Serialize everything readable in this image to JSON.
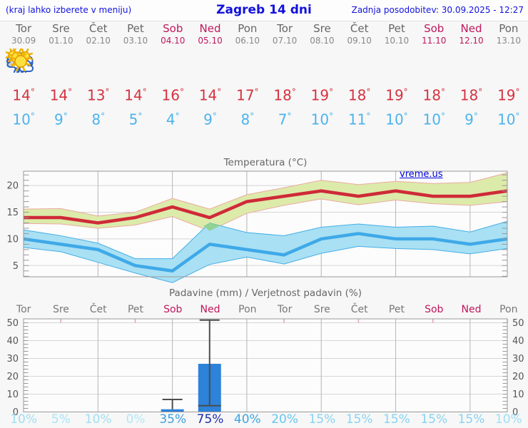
{
  "header": {
    "left_hint": "(kraj lahko izberete v meniju)",
    "title": "Zagreb 14 dni",
    "last_update": "Zadnja posodobitev: 30.09.2025 - 12:27"
  },
  "watermark": "vreme.us",
  "colors": {
    "weekday": "#666666",
    "weekend": "#c0175c",
    "tmax": "#d63240",
    "tmin": "#4cb3ec",
    "bar": "#2d82da",
    "max_line": "#cf2a38",
    "min_line": "#3fa9e8",
    "max_band": "#dcebaa",
    "min_band": "#a9e0f3",
    "overlap": "#8fd08f"
  },
  "days": [
    {
      "name": "Tor",
      "date": "30.09",
      "weekend": false,
      "icon": "cloudy",
      "tmax": "14",
      "tmin": "10",
      "pop": "10%",
      "pop_color": "#9edff4"
    },
    {
      "name": "Sre",
      "date": "01.10",
      "weekend": false,
      "icon": "partly-cloudy",
      "tmax": "14",
      "tmin": "9",
      "pop": "5%",
      "pop_color": "#a8e4f6"
    },
    {
      "name": "Čet",
      "date": "02.10",
      "weekend": false,
      "icon": "partly-cloudy",
      "tmax": "13",
      "tmin": "8",
      "pop": "10%",
      "pop_color": "#9edff4"
    },
    {
      "name": "Pet",
      "date": "03.10",
      "weekend": false,
      "icon": "sunny",
      "tmax": "14",
      "tmin": "5",
      "pop": "0%",
      "pop_color": "#b0e7f8"
    },
    {
      "name": "Sob",
      "date": "04.10",
      "weekend": true,
      "icon": "rain",
      "tmax": "16",
      "tmin": "4",
      "pop": "35%",
      "pop_color": "#3f9fdf"
    },
    {
      "name": "Ned",
      "date": "05.10",
      "weekend": true,
      "icon": "sun-rain",
      "tmax": "14",
      "tmin": "9",
      "pop": "75%",
      "pop_color": "#1c2bae"
    },
    {
      "name": "Pon",
      "date": "06.10",
      "weekend": false,
      "icon": "partly-cloudy",
      "tmax": "17",
      "tmin": "8",
      "pop": "40%",
      "pop_color": "#3aa6e6"
    },
    {
      "name": "Tor",
      "date": "07.10",
      "weekend": false,
      "icon": "mostly-sunny",
      "tmax": "18",
      "tmin": "7",
      "pop": "20%",
      "pop_color": "#67c5ee"
    },
    {
      "name": "Sre",
      "date": "08.10",
      "weekend": false,
      "icon": "sunny",
      "tmax": "19",
      "tmin": "10",
      "pop": "15%",
      "pop_color": "#85d4f2"
    },
    {
      "name": "Čet",
      "date": "09.10",
      "weekend": false,
      "icon": "sunny",
      "tmax": "18",
      "tmin": "11",
      "pop": "15%",
      "pop_color": "#85d4f2"
    },
    {
      "name": "Pet",
      "date": "10.10",
      "weekend": false,
      "icon": "sunny",
      "tmax": "19",
      "tmin": "10",
      "pop": "15%",
      "pop_color": "#85d4f2"
    },
    {
      "name": "Sob",
      "date": "11.10",
      "weekend": true,
      "icon": "sunny",
      "tmax": "18",
      "tmin": "10",
      "pop": "15%",
      "pop_color": "#85d4f2"
    },
    {
      "name": "Ned",
      "date": "12.10",
      "weekend": true,
      "icon": "sunny",
      "tmax": "18",
      "tmin": "9",
      "pop": "15%",
      "pop_color": "#85d4f2"
    },
    {
      "name": "Pon",
      "date": "13.10",
      "weekend": false,
      "icon": "sunny",
      "tmax": "19",
      "tmin": "10",
      "pop": "10%",
      "pop_color": "#9edff4"
    }
  ],
  "chart_data": [
    {
      "type": "line",
      "title": "Temperatura (°C)",
      "categories": [
        "Tor 30.09",
        "Sre 01.10",
        "Čet 02.10",
        "Pet 03.10",
        "Sob 04.10",
        "Ned 05.10",
        "Pon 06.10",
        "Tor 07.10",
        "Sre 08.10",
        "Čet 09.10",
        "Pet 10.10",
        "Sob 11.10",
        "Ned 12.10",
        "Pon 13.10"
      ],
      "series": [
        {
          "name": "max",
          "color": "#cf2a38",
          "values": [
            14,
            14,
            13,
            14,
            16,
            14,
            17,
            18,
            19,
            18,
            19,
            18,
            18,
            19
          ]
        },
        {
          "name": "min",
          "color": "#3fa9e8",
          "values": [
            10,
            9,
            8,
            5,
            4,
            9,
            8,
            7,
            10,
            11,
            10,
            10,
            9,
            10
          ]
        },
        {
          "name": "max-range-upper",
          "values": [
            15.6,
            15.7,
            14.3,
            15.0,
            17.6,
            15.6,
            18.3,
            19.6,
            21.0,
            20.2,
            20.8,
            20.4,
            20.6,
            22.4
          ]
        },
        {
          "name": "max-range-lower",
          "values": [
            12.9,
            12.8,
            12.0,
            12.6,
            14.2,
            11.5,
            14.8,
            16.3,
            17.5,
            16.4,
            17.3,
            16.6,
            16.3,
            17.0
          ]
        },
        {
          "name": "min-range-upper",
          "values": [
            11.7,
            10.6,
            9.2,
            6.3,
            6.3,
            13.0,
            11.2,
            10.6,
            12.2,
            12.8,
            12.2,
            12.4,
            11.3,
            13.3
          ]
        },
        {
          "name": "min-range-lower",
          "values": [
            8.4,
            7.6,
            5.6,
            3.6,
            1.8,
            5.2,
            6.6,
            5.3,
            7.3,
            8.6,
            8.2,
            8.0,
            7.2,
            8.2
          ]
        }
      ],
      "yticks": [
        5,
        10,
        15,
        20
      ],
      "ylim": [
        2.9,
        22.7
      ],
      "grid_vertical_day_index": [
        2,
        4,
        6,
        8,
        10,
        12
      ],
      "overlap_polygon": [
        [
          4.84,
          12.45
        ],
        [
          5,
          13.0
        ],
        [
          5.29,
          12.5
        ],
        [
          5,
          11.5
        ]
      ],
      "legend": "none",
      "grid": "on"
    },
    {
      "type": "bar",
      "title": "Padavine (mm) / Verjetnost padavin (%)",
      "categories": [
        "Tor",
        "Sre",
        "Čet",
        "Pet",
        "Sob",
        "Ned",
        "Pon",
        "Tor",
        "Sre",
        "Čet",
        "Pet",
        "Sob",
        "Ned",
        "Pon"
      ],
      "values": [
        0,
        0,
        0,
        0,
        1.5,
        27,
        0,
        0,
        0,
        0,
        0,
        0,
        0,
        0
      ],
      "whiskers": [
        {
          "day_index": 4,
          "high": 7,
          "low": 1.5,
          "cap_low": false
        },
        {
          "day_index": 5,
          "high": 51.5,
          "low": 3.5,
          "cap_low": true
        }
      ],
      "probabilities": [
        "10%",
        "5%",
        "10%",
        "0%",
        "35%",
        "75%",
        "40%",
        "20%",
        "15%",
        "15%",
        "15%",
        "15%",
        "15%",
        "10%"
      ],
      "yticks": [
        0,
        10,
        20,
        30,
        40,
        50
      ],
      "ylim": [
        0,
        52.2
      ],
      "grid_vertical_day_index": [
        2,
        4,
        6,
        8,
        10,
        12
      ],
      "grid": "on"
    }
  ]
}
